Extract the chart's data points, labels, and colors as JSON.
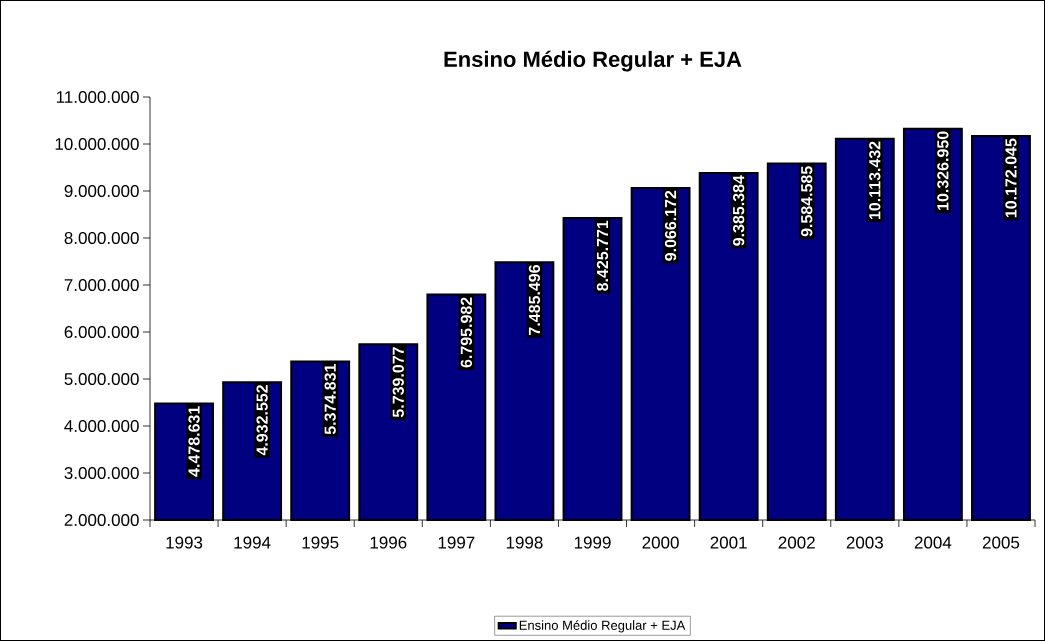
{
  "chart_data": {
    "type": "bar",
    "title": "Ensino Médio Regular + EJA",
    "categories": [
      "1993",
      "1994",
      "1995",
      "1996",
      "1997",
      "1998",
      "1999",
      "2000",
      "2001",
      "2002",
      "2003",
      "2004",
      "2005"
    ],
    "series": [
      {
        "name": "Ensino Médio Regular + EJA",
        "color": "#000080",
        "values": [
          4478631,
          4932552,
          5374831,
          5739077,
          6795982,
          7485496,
          8425771,
          9066172,
          9385384,
          9584585,
          10113432,
          10326950,
          10172045
        ],
        "value_labels": [
          "4.478.631",
          "4.932.552",
          "5.374.831",
          "5.739.077",
          "6.795.982",
          "7.485.496",
          "8.425.771",
          "9.066.172",
          "9.385.384",
          "9.584.585",
          "10.113.432",
          "10.326.950",
          "10.172.045"
        ]
      }
    ],
    "ylim": [
      2000000,
      11000000
    ],
    "yticks": [
      {
        "value": 2000000,
        "label": "2.000.000"
      },
      {
        "value": 3000000,
        "label": "3.000.000"
      },
      {
        "value": 4000000,
        "label": "4.000.000"
      },
      {
        "value": 5000000,
        "label": "5.000.000"
      },
      {
        "value": 6000000,
        "label": "6.000.000"
      },
      {
        "value": 7000000,
        "label": "7.000.000"
      },
      {
        "value": 8000000,
        "label": "8.000.000"
      },
      {
        "value": 9000000,
        "label": "9.000.000"
      },
      {
        "value": 10000000,
        "label": "10.000.000"
      },
      {
        "value": 11000000,
        "label": "11.000.000"
      }
    ],
    "grid": false,
    "legend": "bottom"
  }
}
